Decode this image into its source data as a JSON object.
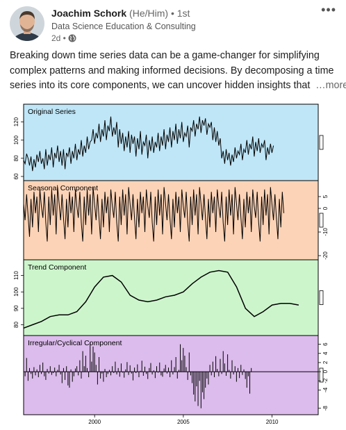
{
  "author": {
    "name": "Joachim Schork",
    "pronouns": "(He/Him)",
    "degree": "• 1st",
    "headline": "Data Science Education & Consulting",
    "time": "2d •"
  },
  "post": {
    "line1": "Breaking down time series data can be a game-changer for simplifying",
    "line2": "complex patterns and making informed decisions. By decomposing a time",
    "line3": "series into its core components, we can uncover hidden insights that",
    "see_more": "…more"
  },
  "chart_data": [
    {
      "type": "line",
      "title": "Original Series",
      "bg": "#bfe6f7",
      "ylim": [
        60,
        135
      ],
      "yticks": [
        "60",
        "80",
        "100",
        "120"
      ],
      "x_start": 1996,
      "step": 0.0833,
      "values": [
        78,
        74,
        85,
        80,
        72,
        82,
        66,
        79,
        70,
        84,
        76,
        88,
        74,
        80,
        68,
        90,
        72,
        84,
        78,
        92,
        70,
        86,
        80,
        94,
        76,
        88,
        72,
        90,
        68,
        86,
        82,
        92,
        74,
        88,
        80,
        96,
        78,
        90,
        84,
        100,
        82,
        94,
        86,
        104,
        90,
        98,
        100,
        112,
        96,
        108,
        102,
        118,
        98,
        112,
        104,
        122,
        100,
        116,
        110,
        126,
        104,
        114,
        106,
        120,
        92,
        112,
        96,
        108,
        88,
        104,
        92,
        110,
        86,
        106,
        96,
        104,
        82,
        102,
        90,
        110,
        84,
        98,
        94,
        106,
        80,
        100,
        88,
        104,
        86,
        98,
        92,
        108,
        88,
        104,
        94,
        112,
        90,
        106,
        98,
        114,
        92,
        110,
        100,
        118,
        96,
        112,
        102,
        120,
        98,
        108,
        104,
        116,
        92,
        114,
        110,
        122,
        104,
        118,
        112,
        126,
        108,
        122,
        116,
        124,
        106,
        118,
        114,
        120,
        100,
        114,
        98,
        110,
        94,
        102,
        80,
        88,
        74,
        90,
        78,
        86,
        72,
        84,
        76,
        92,
        80,
        88,
        84,
        96,
        78,
        90,
        86,
        100,
        84,
        96,
        90,
        104,
        82,
        98,
        88,
        102,
        86,
        96,
        92,
        100,
        78,
        92,
        84,
        96,
        86,
        94
      ]
    },
    {
      "type": "line",
      "title": "Seasonal Component",
      "bg": "#fcd3b6",
      "ylim": [
        -20,
        10
      ],
      "yticks": [
        "-20",
        "-10",
        "0",
        "5"
      ],
      "x_start": 1996,
      "step": 0.0833,
      "values": [
        2,
        -5,
        6,
        -3,
        -12,
        4,
        -8,
        7,
        -2,
        5,
        -10,
        8,
        1,
        -4,
        7,
        -6,
        -14,
        5,
        -7,
        8,
        -3,
        6,
        -11,
        9,
        2,
        -5,
        6,
        -4,
        -13,
        4,
        -8,
        7,
        -2,
        5,
        -10,
        8,
        1,
        -4,
        7,
        -6,
        -14,
        5,
        -7,
        8,
        -3,
        6,
        -11,
        9,
        2,
        -5,
        6,
        -4,
        -13,
        4,
        -8,
        7,
        -2,
        5,
        -10,
        8,
        1,
        -4,
        7,
        -6,
        -14,
        5,
        -7,
        8,
        -3,
        6,
        -11,
        9,
        2,
        -5,
        6,
        -4,
        -13,
        4,
        -8,
        7,
        -2,
        5,
        -10,
        8,
        1,
        -4,
        7,
        -6,
        -14,
        5,
        -7,
        8,
        -3,
        6,
        -11,
        9,
        2,
        -5,
        6,
        -4,
        -13,
        4,
        -8,
        7,
        -2,
        5,
        -10,
        8,
        1,
        -4,
        7,
        -6,
        -14,
        5,
        -7,
        8,
        -3,
        6,
        -11,
        9,
        2,
        -5,
        6,
        -4,
        -13,
        4,
        -8,
        7,
        -2,
        5,
        -10,
        8,
        1,
        -4,
        7,
        -6,
        -14,
        5,
        -7,
        8,
        -3,
        6,
        -11,
        9,
        2,
        -5,
        6,
        -4,
        -13,
        4,
        -8,
        7,
        -2,
        5,
        -10,
        8,
        1,
        -4,
        7,
        -6,
        -14,
        5,
        -7,
        8,
        -3,
        6,
        -11,
        9,
        2,
        -5,
        6,
        -4,
        -13,
        4,
        -8,
        7,
        -2
      ]
    },
    {
      "type": "line",
      "title": "Trend Component",
      "bg": "#cdf5cc",
      "ylim": [
        76,
        117
      ],
      "yticks": [
        "80",
        "90",
        "100",
        "110"
      ],
      "x_start": 1996,
      "step": 0.5,
      "values": [
        78,
        80,
        82,
        85,
        86,
        86,
        88,
        94,
        103,
        109,
        110,
        106,
        98,
        95,
        94,
        95,
        97,
        98,
        100,
        105,
        109,
        112,
        113,
        112,
        103,
        90,
        85,
        88,
        92,
        93,
        93,
        92
      ]
    },
    {
      "type": "bar",
      "title": "Irregular/Cyclical Component",
      "bg": "#dcbcec",
      "ylim": [
        -8.5,
        7
      ],
      "yticks": [
        "-8",
        "-4",
        "-2",
        "0",
        "2",
        "4",
        "6"
      ],
      "x_start": 1996,
      "step": 0.0833,
      "values": [
        0.5,
        -1,
        3,
        -2,
        0.8,
        -0.5,
        -1.5,
        1,
        -0.8,
        0.5,
        -1.2,
        1.5,
        -0.5,
        2,
        -1,
        -1.8,
        0.6,
        -0.4,
        1.2,
        -0.7,
        -0.3,
        0.9,
        -1,
        0.4,
        1.5,
        -0.6,
        -2.5,
        0.8,
        -1.8,
        1.2,
        -3,
        -3.5,
        0.5,
        -2.2,
        -1,
        0.7,
        1.2,
        -0.8,
        2.5,
        -1.5,
        4.5,
        1.2,
        3.5,
        0.8,
        -1.2,
        6.5,
        2.2,
        5.5,
        4.2,
        1.5,
        -2.8,
        3.2,
        -1.5,
        -0.4,
        -2.2,
        0.6,
        -1.2,
        -0.5,
        0.4,
        -0.8,
        1.2,
        -0.3,
        2.2,
        -0.6,
        0.8,
        -1.1,
        1.8,
        -0.2,
        -1.3,
        0.5,
        2.1,
        -0.7,
        1.4,
        -0.4,
        -1.9,
        0.9,
        -0.3,
        1.6,
        -1.2,
        0.2,
        2.4,
        -0.9,
        1.1,
        -0.5,
        -1.6,
        0.8,
        1.9,
        -0.6,
        0.3,
        -1.4,
        1.2,
        -0.2,
        2,
        -0.8,
        -1.1,
        0.7,
        1.5,
        -0.4,
        0.9,
        -1.2,
        2.5,
        -0.6,
        1,
        3.2,
        -1.5,
        0.4,
        6,
        2.5,
        5.2,
        3.5,
        1,
        -1.8,
        4.2,
        -0.8,
        -2.5,
        -5,
        -6.5,
        -3.2,
        -7.5,
        -2,
        -8,
        -4.5,
        -6,
        -3.5,
        -1.5,
        -2.8,
        1.5,
        -0.8,
        2.2,
        -1.2,
        3.4,
        0.6,
        -1,
        2.8,
        -0.5,
        4.5,
        1.8,
        -0.9,
        3.8,
        0.4,
        -1.5,
        2.5,
        -0.6,
        1.2,
        -2.2,
        0.8,
        -1.4,
        1.5,
        -0.7,
        0.5,
        -1.6,
        -3.5,
        -1,
        -4.8,
        0.8
      ]
    }
  ],
  "x_axis": {
    "ticks": [
      {
        "label": "2000",
        "value": 2000
      },
      {
        "label": "2005",
        "value": 2005
      },
      {
        "label": "2010",
        "value": 2010
      }
    ]
  }
}
